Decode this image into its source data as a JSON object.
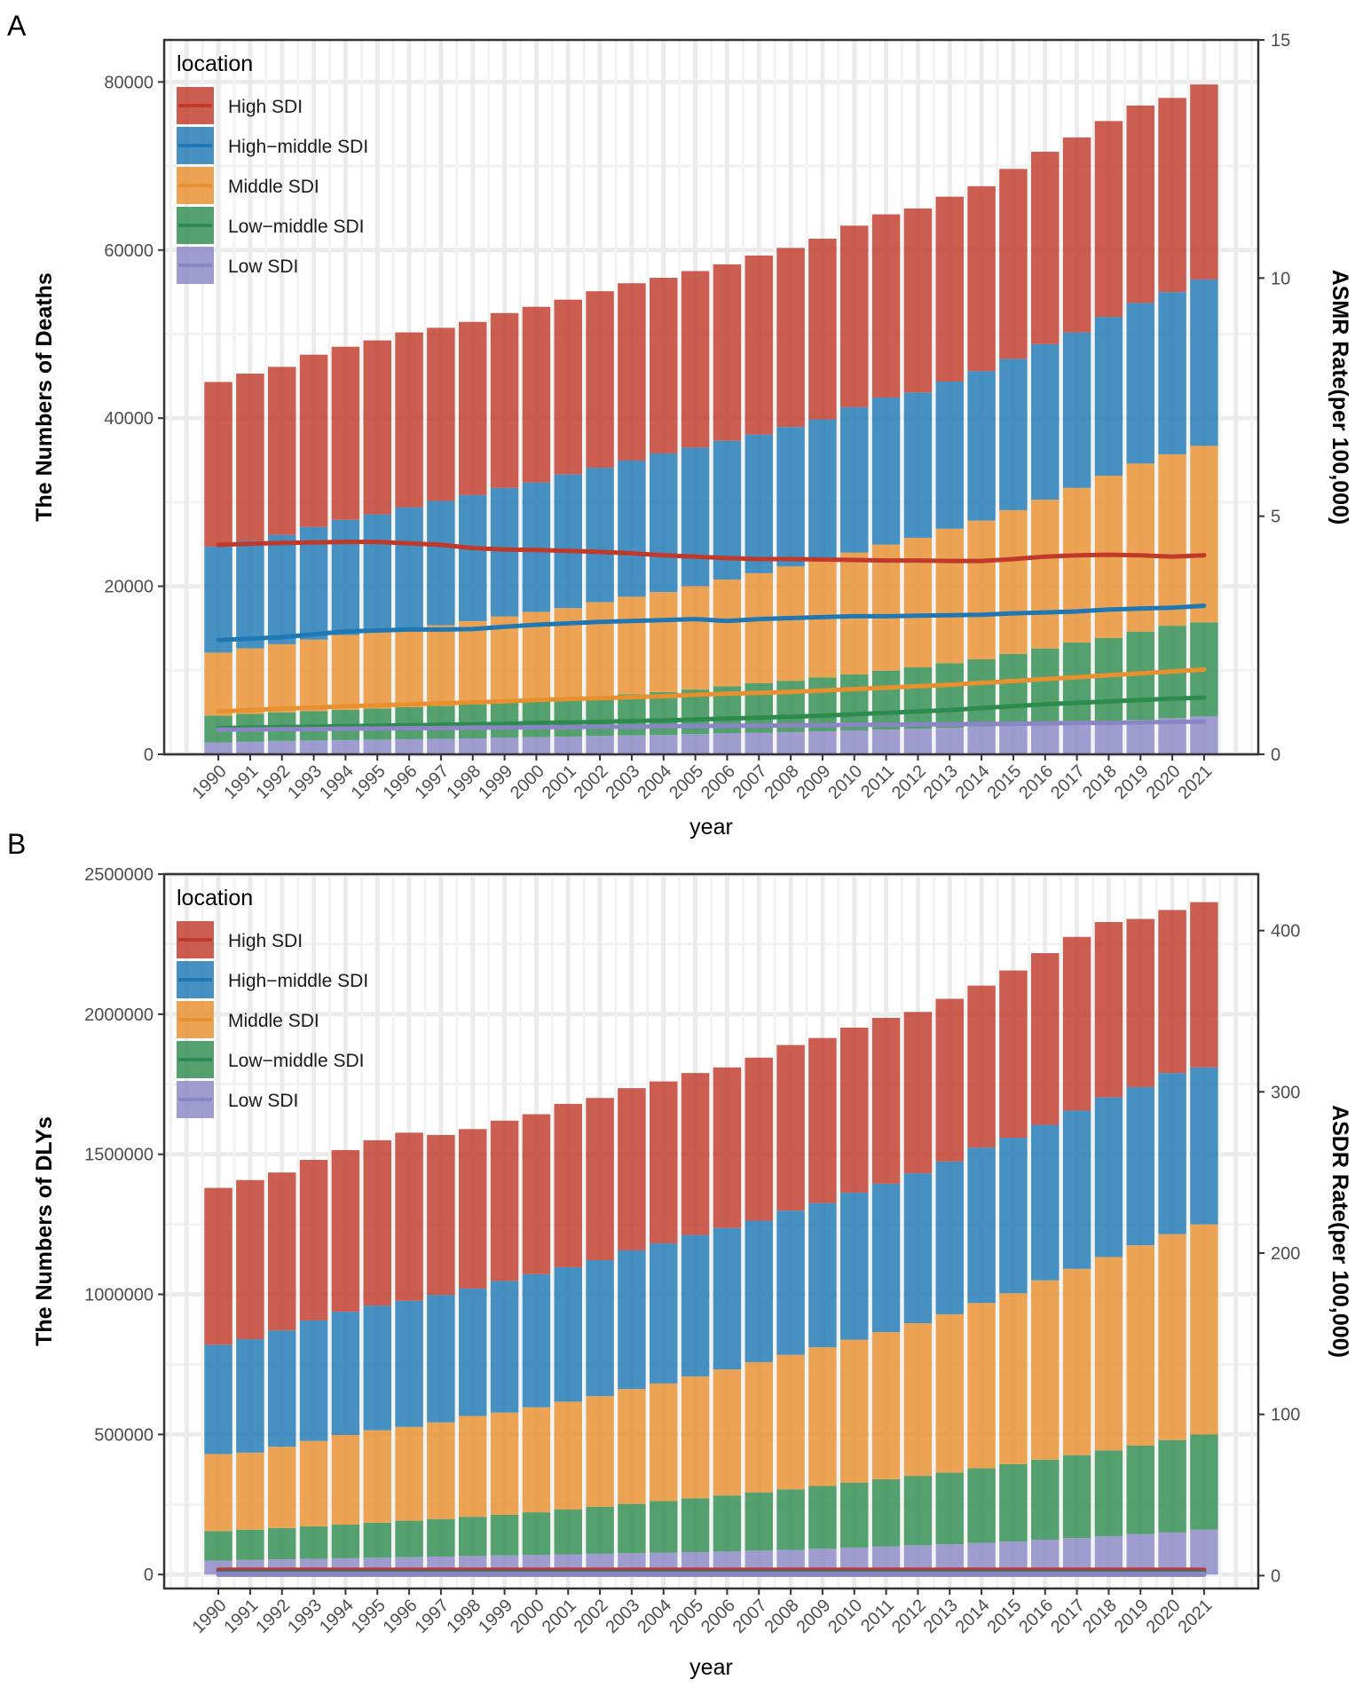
{
  "legend_items": [
    {
      "name": "High SDI",
      "color": "#C0392B"
    },
    {
      "name": "High−middle SDI",
      "color": "#1F77B4"
    },
    {
      "name": "Middle SDI",
      "color": "#E8902E"
    },
    {
      "name": "Low−middle SDI",
      "color": "#2E8B4E"
    },
    {
      "name": "Low SDI",
      "color": "#8A86C6"
    }
  ],
  "chart_data": [
    {
      "panel_label": "A",
      "type": "bar",
      "stacked": true,
      "title": "",
      "xlabel": "year",
      "ylabel": "The Numbers of Deaths",
      "y2label": "ASMR Rate(per 100,000)",
      "legend_title": "location",
      "legend_position": "top-left",
      "ylim": [
        0,
        85000
      ],
      "y2lim": [
        0,
        15
      ],
      "yticks": [
        0,
        20000,
        40000,
        60000,
        80000
      ],
      "y2ticks": [
        0,
        5,
        10,
        15
      ],
      "grid": true,
      "categories": [
        "1990",
        "1991",
        "1992",
        "1993",
        "1994",
        "1995",
        "1996",
        "1997",
        "1998",
        "1999",
        "2000",
        "2001",
        "2002",
        "2003",
        "2004",
        "2005",
        "2006",
        "2007",
        "2008",
        "2009",
        "2010",
        "2011",
        "2012",
        "2013",
        "2014",
        "2015",
        "2016",
        "2017",
        "2018",
        "2019",
        "2020",
        "2021"
      ],
      "series": [
        {
          "name": "Low SDI",
          "values": [
            1400,
            1500,
            1600,
            1650,
            1700,
            1750,
            1800,
            1850,
            1900,
            2000,
            2050,
            2100,
            2200,
            2250,
            2300,
            2400,
            2500,
            2550,
            2650,
            2750,
            2850,
            2950,
            3050,
            3150,
            3300,
            3450,
            3600,
            3800,
            3950,
            4100,
            4300,
            4500
          ]
        },
        {
          "name": "Low−middle SDI",
          "values": [
            3200,
            3300,
            3400,
            3500,
            3600,
            3700,
            3800,
            3900,
            4050,
            4200,
            4400,
            4500,
            4700,
            4900,
            5100,
            5300,
            5600,
            5900,
            6100,
            6400,
            6650,
            7000,
            7300,
            7700,
            8000,
            8500,
            9000,
            9500,
            9900,
            10500,
            11000,
            11200
          ]
        },
        {
          "name": "Middle SDI",
          "values": [
            7500,
            7800,
            8100,
            8500,
            8900,
            9200,
            9400,
            9600,
            9900,
            10200,
            10500,
            10800,
            11200,
            11600,
            11900,
            12300,
            12700,
            13100,
            13600,
            14100,
            14500,
            15000,
            15400,
            16000,
            16500,
            17100,
            17700,
            18400,
            19300,
            20000,
            20400,
            21000
          ]
        },
        {
          "name": "High−middle SDI",
          "values": [
            12600,
            12800,
            13000,
            13400,
            13700,
            13900,
            14400,
            14800,
            15000,
            15300,
            15400,
            15900,
            16000,
            16200,
            16500,
            16500,
            16500,
            16500,
            16600,
            16600,
            17300,
            17500,
            17300,
            17500,
            17800,
            18000,
            18500,
            18500,
            18900,
            19100,
            19300,
            19800
          ]
        },
        {
          "name": "High SDI",
          "values": [
            19600,
            19900,
            20000,
            20500,
            20600,
            20700,
            20800,
            20600,
            20600,
            20800,
            20900,
            20800,
            21000,
            21100,
            20900,
            21000,
            21000,
            21300,
            21300,
            21500,
            21600,
            21800,
            21900,
            22000,
            22000,
            22600,
            22900,
            23200,
            23300,
            23500,
            23100,
            23200
          ]
        }
      ],
      "rate_lines": [
        {
          "name": "High SDI",
          "values": [
            4.4,
            4.42,
            4.44,
            4.45,
            4.46,
            4.46,
            4.43,
            4.4,
            4.33,
            4.3,
            4.29,
            4.27,
            4.25,
            4.22,
            4.18,
            4.15,
            4.12,
            4.1,
            4.1,
            4.09,
            4.08,
            4.07,
            4.07,
            4.06,
            4.06,
            4.1,
            4.15,
            4.18,
            4.19,
            4.18,
            4.15,
            4.18
          ]
        },
        {
          "name": "High−middle SDI",
          "values": [
            2.4,
            2.43,
            2.46,
            2.52,
            2.58,
            2.6,
            2.62,
            2.62,
            2.63,
            2.68,
            2.72,
            2.75,
            2.78,
            2.8,
            2.82,
            2.84,
            2.8,
            2.84,
            2.86,
            2.88,
            2.9,
            2.9,
            2.91,
            2.92,
            2.93,
            2.96,
            2.98,
            3.0,
            3.04,
            3.06,
            3.08,
            3.12
          ]
        },
        {
          "name": "Middle SDI",
          "values": [
            0.9,
            0.93,
            0.96,
            0.98,
            1.01,
            1.03,
            1.05,
            1.07,
            1.09,
            1.11,
            1.14,
            1.16,
            1.18,
            1.2,
            1.22,
            1.25,
            1.27,
            1.29,
            1.31,
            1.34,
            1.37,
            1.4,
            1.43,
            1.46,
            1.5,
            1.54,
            1.58,
            1.62,
            1.66,
            1.7,
            1.74,
            1.78
          ]
        },
        {
          "name": "Low−middle SDI",
          "values": [
            0.55,
            0.56,
            0.57,
            0.58,
            0.59,
            0.6,
            0.61,
            0.62,
            0.63,
            0.64,
            0.66,
            0.67,
            0.68,
            0.7,
            0.71,
            0.73,
            0.75,
            0.77,
            0.79,
            0.81,
            0.84,
            0.87,
            0.9,
            0.93,
            0.97,
            1.01,
            1.05,
            1.08,
            1.11,
            1.14,
            1.17,
            1.19
          ]
        },
        {
          "name": "Low SDI",
          "values": [
            0.52,
            0.52,
            0.53,
            0.53,
            0.54,
            0.54,
            0.55,
            0.55,
            0.56,
            0.56,
            0.57,
            0.57,
            0.58,
            0.58,
            0.59,
            0.59,
            0.6,
            0.6,
            0.61,
            0.61,
            0.62,
            0.62,
            0.63,
            0.63,
            0.64,
            0.64,
            0.65,
            0.66,
            0.66,
            0.67,
            0.68,
            0.69
          ]
        }
      ]
    },
    {
      "panel_label": "B",
      "type": "bar",
      "stacked": true,
      "title": "",
      "xlabel": "year",
      "ylabel": "The Numbers of DLYs",
      "y2label": "ASDR Rate(per 100,000)",
      "legend_title": "location",
      "legend_position": "top-left",
      "ylim": [
        -50000,
        2500000
      ],
      "y2lim": [
        -8,
        435
      ],
      "yticks": [
        0,
        500000,
        1000000,
        1500000,
        2000000,
        2500000
      ],
      "y2ticks": [
        0,
        100,
        200,
        300,
        400
      ],
      "grid": true,
      "categories": [
        "1990",
        "1991",
        "1992",
        "1993",
        "1994",
        "1995",
        "1996",
        "1997",
        "1998",
        "1999",
        "2000",
        "2001",
        "2002",
        "2003",
        "2004",
        "2005",
        "2006",
        "2007",
        "2008",
        "2009",
        "2010",
        "2011",
        "2012",
        "2013",
        "2014",
        "2015",
        "2016",
        "2017",
        "2018",
        "2019",
        "2020",
        "2021"
      ],
      "series": [
        {
          "name": "Low SDI",
          "values": [
            50000,
            52000,
            54000,
            56000,
            58000,
            60000,
            62000,
            64000,
            66000,
            68000,
            70000,
            72000,
            74000,
            76000,
            78000,
            80000,
            82000,
            85000,
            88000,
            92000,
            96000,
            100000,
            104000,
            108000,
            113000,
            118000,
            124000,
            130000,
            137000,
            144000,
            150000,
            160000
          ]
        },
        {
          "name": "Low−middle SDI",
          "values": [
            105000,
            108000,
            112000,
            116000,
            120000,
            125000,
            130000,
            134000,
            140000,
            145000,
            152000,
            160000,
            168000,
            176000,
            184000,
            192000,
            200000,
            208000,
            216000,
            224000,
            232000,
            240000,
            248000,
            256000,
            266000,
            276000,
            286000,
            296000,
            306000,
            316000,
            330000,
            340000
          ]
        },
        {
          "name": "Middle SDI",
          "values": [
            275000,
            275000,
            290000,
            305000,
            320000,
            330000,
            335000,
            345000,
            360000,
            365000,
            375000,
            385000,
            395000,
            410000,
            420000,
            435000,
            450000,
            465000,
            480000,
            495000,
            510000,
            525000,
            545000,
            565000,
            590000,
            610000,
            640000,
            665000,
            690000,
            715000,
            735000,
            750000
          ]
        },
        {
          "name": "High−middle SDI",
          "values": [
            390000,
            405000,
            415000,
            430000,
            440000,
            445000,
            450000,
            455000,
            455000,
            470000,
            475000,
            480000,
            485000,
            495000,
            500000,
            505000,
            505000,
            505000,
            515000,
            515000,
            525000,
            530000,
            535000,
            545000,
            555000,
            555000,
            555000,
            565000,
            570000,
            565000,
            575000,
            560000
          ]
        },
        {
          "name": "High SDI",
          "values": [
            560000,
            568000,
            564000,
            573000,
            577000,
            590000,
            600000,
            571000,
            569000,
            572000,
            571000,
            583000,
            579000,
            579000,
            578000,
            578000,
            573000,
            582000,
            591000,
            589000,
            589000,
            592000,
            576000,
            581000,
            578000,
            597000,
            613000,
            620000,
            626000,
            600000,
            582000,
            590000
          ]
        }
      ],
      "rate_lines": [
        {
          "name": "High SDI",
          "values": [
            3.6,
            3.6,
            3.6,
            3.6,
            3.6,
            3.6,
            3.6,
            3.6,
            3.6,
            3.6,
            3.6,
            3.6,
            3.6,
            3.6,
            3.6,
            3.6,
            3.6,
            3.6,
            3.6,
            3.6,
            3.6,
            3.6,
            3.6,
            3.6,
            3.6,
            3.6,
            3.6,
            3.6,
            3.6,
            3.6,
            3.6,
            3.6
          ]
        },
        {
          "name": "High−middle SDI",
          "values": [
            2.0,
            2.0,
            2.0,
            2.0,
            2.0,
            2.0,
            2.0,
            2.0,
            2.0,
            2.0,
            2.0,
            2.0,
            2.0,
            2.0,
            2.0,
            2.0,
            2.0,
            2.0,
            2.0,
            2.0,
            2.0,
            2.0,
            2.0,
            2.0,
            2.0,
            2.0,
            2.0,
            2.0,
            2.0,
            2.0,
            2.0,
            2.0
          ]
        },
        {
          "name": "Middle SDI",
          "values": [
            1.0,
            1.0,
            1.0,
            1.0,
            1.0,
            1.0,
            1.0,
            1.0,
            1.0,
            1.0,
            1.0,
            1.0,
            1.0,
            1.0,
            1.0,
            1.0,
            1.0,
            1.0,
            1.0,
            1.0,
            1.0,
            1.0,
            1.0,
            1.0,
            1.0,
            1.0,
            1.0,
            1.0,
            1.0,
            1.0,
            1.0,
            1.0
          ]
        },
        {
          "name": "Low−middle SDI",
          "values": [
            0.7,
            0.7,
            0.7,
            0.7,
            0.7,
            0.7,
            0.7,
            0.7,
            0.7,
            0.7,
            0.7,
            0.7,
            0.7,
            0.7,
            0.7,
            0.7,
            0.7,
            0.7,
            0.7,
            0.7,
            0.7,
            0.7,
            0.7,
            0.7,
            0.7,
            0.7,
            0.7,
            0.7,
            0.7,
            0.7,
            0.7,
            0.7
          ]
        },
        {
          "name": "Low SDI",
          "values": [
            0.6,
            0.6,
            0.6,
            0.6,
            0.6,
            0.6,
            0.6,
            0.6,
            0.6,
            0.6,
            0.6,
            0.6,
            0.6,
            0.6,
            0.6,
            0.6,
            0.6,
            0.6,
            0.6,
            0.6,
            0.6,
            0.6,
            0.6,
            0.6,
            0.6,
            0.6,
            0.6,
            0.6,
            0.6,
            0.6,
            0.6,
            0.6
          ]
        }
      ]
    }
  ]
}
